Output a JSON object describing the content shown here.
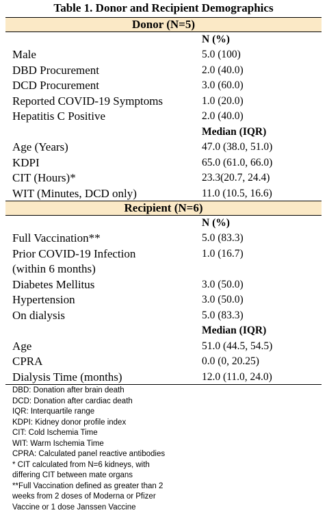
{
  "title": "Table 1. Donor and Recipient Demographics",
  "sections": [
    {
      "header": "Donor (N=5)",
      "groups": [
        {
          "heading": "N (%)",
          "rows": [
            {
              "label": [
                "Male"
              ],
              "value": "5.0 (100)"
            },
            {
              "label": [
                "DBD Procurement"
              ],
              "value": "2.0 (40.0)"
            },
            {
              "label": [
                "DCD Procurement"
              ],
              "value": "3.0 (60.0)"
            },
            {
              "label": [
                "Reported COVID-19 Symptoms"
              ],
              "value": "1.0 (20.0)"
            },
            {
              "label": [
                "Hepatitis C Positive"
              ],
              "value": "2.0 (40.0)"
            }
          ]
        },
        {
          "heading": "Median (IQR)",
          "rows": [
            {
              "label": [
                "Age (Years)"
              ],
              "value": "47.0 (38.0, 51.0)"
            },
            {
              "label": [
                "KDPI"
              ],
              "value": "65.0 (61.0, 66.0)"
            },
            {
              "label": [
                "CIT (Hours)*"
              ],
              "value": "23.3(20.7, 24.4)"
            },
            {
              "label": [
                "WIT (Minutes, DCD only)"
              ],
              "value": "11.0 (10.5, 16.6)"
            }
          ]
        }
      ]
    },
    {
      "header": "Recipient (N=6)",
      "groups": [
        {
          "heading": "N (%)",
          "rows": [
            {
              "label": [
                "Full Vaccination**"
              ],
              "value": "5.0 (83.3)"
            },
            {
              "label": [
                "Prior COVID-19 Infection",
                "(within 6 months)"
              ],
              "value": "1.0 (16.7)"
            },
            {
              "label": [
                "Diabetes Mellitus"
              ],
              "value": "3.0 (50.0)"
            },
            {
              "label": [
                "Hypertension"
              ],
              "value": "3.0 (50.0)"
            },
            {
              "label": [
                "On dialysis"
              ],
              "value": "5.0 (83.3)"
            }
          ]
        },
        {
          "heading": "Median (IQR)",
          "rows": [
            {
              "label": [
                "Age"
              ],
              "value": "51.0 (44.5, 54.5)"
            },
            {
              "label": [
                "CPRA"
              ],
              "value": "0.0 (0, 20.25)"
            },
            {
              "label": [
                "Dialysis Time (months)"
              ],
              "value": "12.0 (11.0, 24.0)"
            }
          ]
        }
      ]
    }
  ],
  "footnotes": [
    "DBD: Donation after brain death",
    "DCD: Donation after cardiac death",
    "IQR: Interquartile range",
    "KDPI: Kidney donor profile index",
    "CIT: Cold Ischemia Time",
    "WIT: Warm Ischemia Time",
    "CPRA: Calculated panel reactive antibodies",
    "* CIT calculated from N=6 kidneys, with",
    "differing CIT between mate organs",
    "**Full Vaccination defined as greater than 2",
    "weeks from 2 doses of Moderna or Pfizer",
    "Vaccine or 1 dose Janssen Vaccine"
  ]
}
